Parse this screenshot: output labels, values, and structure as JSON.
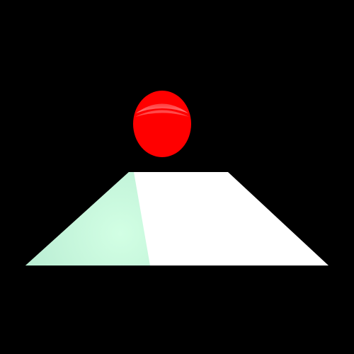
{
  "scene": {
    "background_color": "#000000",
    "floor": {
      "lit_color": "#ffffff",
      "shadow_color": "#b8ecd2",
      "shadow_highlight": "#d2ffe4"
    },
    "ball": {
      "color": "#ff0000",
      "shade_color": "#e10000",
      "highlight_color": "#ff6a6a"
    }
  }
}
